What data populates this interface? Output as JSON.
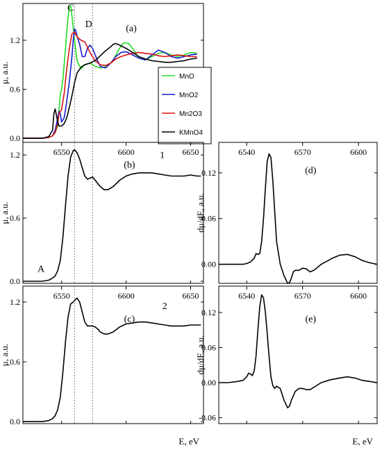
{
  "colors": {
    "mno": "#22dd22",
    "mno2": "#1a1acc",
    "mn2o3": "#dd1111",
    "kmno4": "#000000",
    "axis": "#000000",
    "marker_line": "#555555"
  },
  "chart_data": [
    {
      "id": "a",
      "type": "line",
      "panel_label": "(a)",
      "ylabel": "μ, a.u.",
      "xlabel": "",
      "xlim": [
        6520,
        6660
      ],
      "ylim": [
        -0.05,
        1.65
      ],
      "yticks": [
        0.0,
        0.6,
        1.2
      ],
      "ytick_labels": [
        "0.0",
        "0.6",
        "1.2"
      ],
      "legend": {
        "placement": "lower-right",
        "entries": [
          "MnO",
          "MnO2",
          "Mn2O3",
          "KMnO4"
        ]
      },
      "annotations": [
        {
          "text": "C",
          "x": 6557,
          "y": 1.56
        },
        {
          "text": "D",
          "x": 6571,
          "y": 1.36
        }
      ],
      "vlines": [
        6560,
        6574
      ],
      "series": [
        {
          "name": "MnO",
          "color_key": "mno",
          "x": [
            6520,
            6535,
            6540,
            6543,
            6545,
            6547,
            6548,
            6549,
            6550,
            6551,
            6552,
            6553,
            6554,
            6555,
            6556,
            6557,
            6558,
            6560,
            6562,
            6565,
            6568,
            6572,
            6576,
            6580,
            6585,
            6590,
            6594,
            6598,
            6602,
            6606,
            6610,
            6615,
            6620,
            6625,
            6630,
            6635,
            6640,
            6645,
            6650,
            6655
          ],
          "y": [
            0.0,
            0.0,
            0.01,
            0.03,
            0.07,
            0.15,
            0.35,
            0.55,
            0.6,
            0.72,
            0.9,
            1.1,
            1.3,
            1.48,
            1.6,
            1.62,
            1.5,
            1.2,
            0.95,
            0.85,
            0.9,
            0.92,
            0.88,
            0.86,
            0.88,
            0.95,
            1.08,
            1.17,
            1.16,
            1.08,
            0.98,
            0.96,
            1.0,
            1.04,
            1.05,
            1.02,
            1.0,
            1.02,
            1.05,
            1.04
          ]
        },
        {
          "name": "MnO2",
          "color_key": "mno2",
          "x": [
            6520,
            6535,
            6540,
            6543,
            6545,
            6547,
            6548,
            6549,
            6550,
            6552,
            6554,
            6556,
            6558,
            6559,
            6560,
            6561,
            6562,
            6564,
            6566,
            6568,
            6570,
            6572,
            6574,
            6577,
            6580,
            6584,
            6588,
            6592,
            6596,
            6600,
            6605,
            6610,
            6615,
            6620,
            6625,
            6630,
            6635,
            6640,
            6645,
            6650,
            6655
          ],
          "y": [
            0.0,
            0.0,
            0.01,
            0.03,
            0.1,
            0.25,
            0.33,
            0.3,
            0.2,
            0.25,
            0.45,
            0.7,
            1.0,
            1.2,
            1.34,
            1.32,
            1.25,
            1.15,
            1.0,
            1.0,
            1.1,
            1.14,
            1.1,
            0.98,
            0.88,
            0.86,
            0.92,
            1.0,
            1.05,
            1.06,
            1.02,
            0.98,
            0.96,
            1.02,
            1.08,
            1.05,
            1.0,
            0.98,
            1.0,
            1.02,
            1.03
          ]
        },
        {
          "name": "Mn2O3",
          "color_key": "mn2o3",
          "x": [
            6520,
            6535,
            6540,
            6543,
            6545,
            6547,
            6548,
            6549,
            6550,
            6552,
            6554,
            6556,
            6558,
            6560,
            6562,
            6565,
            6568,
            6572,
            6576,
            6580,
            6584,
            6588,
            6592,
            6596,
            6600,
            6605,
            6610,
            6615,
            6620,
            6625,
            6630,
            6635,
            6640,
            6645,
            6650,
            6655
          ],
          "y": [
            0.0,
            0.0,
            0.01,
            0.03,
            0.07,
            0.18,
            0.3,
            0.33,
            0.35,
            0.55,
            0.85,
            1.1,
            1.28,
            1.3,
            1.24,
            1.2,
            1.18,
            1.05,
            0.95,
            0.9,
            0.89,
            0.92,
            0.97,
            1.0,
            1.02,
            1.04,
            1.05,
            1.04,
            1.03,
            1.01,
            1.0,
            1.01,
            1.02,
            1.01,
            1.0,
            1.0
          ]
        },
        {
          "name": "KMnO4",
          "color_key": "kmno4",
          "x": [
            6520,
            6535,
            6540,
            6543,
            6544,
            6545,
            6546,
            6547,
            6548,
            6550,
            6552,
            6554,
            6556,
            6558,
            6560,
            6562,
            6565,
            6568,
            6572,
            6576,
            6580,
            6584,
            6588,
            6590,
            6592,
            6595,
            6600,
            6605,
            6610,
            6615,
            6620,
            6625,
            6630,
            6635,
            6640,
            6645,
            6650,
            6655
          ],
          "y": [
            0.0,
            0.0,
            0.02,
            0.1,
            0.3,
            0.36,
            0.28,
            0.2,
            0.15,
            0.15,
            0.18,
            0.25,
            0.38,
            0.52,
            0.68,
            0.8,
            0.87,
            0.9,
            0.92,
            0.95,
            1.01,
            1.07,
            1.12,
            1.15,
            1.16,
            1.14,
            1.1,
            1.05,
            1.0,
            0.97,
            0.95,
            0.94,
            0.93,
            0.93,
            0.94,
            0.95,
            0.97,
            0.98
          ]
        }
      ]
    },
    {
      "id": "b",
      "type": "line",
      "panel_label": "(b)",
      "ylabel": "μ, a.u.",
      "xlabel": "",
      "xlim": [
        6520,
        6660
      ],
      "ylim": [
        -0.02,
        1.32
      ],
      "xticks": [
        6550,
        6600,
        6650
      ],
      "xtick_labels": [
        "6550",
        "6600",
        "6650"
      ],
      "yticks": [
        0.0,
        0.6,
        1.2
      ],
      "ytick_labels": [
        "0.0",
        "0.6",
        "1.2"
      ],
      "annotations": [
        {
          "text": "1",
          "x": 6628,
          "y": 1.17
        },
        {
          "text": "A",
          "x": 6534,
          "y": 0.09
        }
      ],
      "vlines": [
        6560,
        6574
      ],
      "series": [
        {
          "color_key": "kmno4",
          "x": [
            6520,
            6530,
            6535,
            6540,
            6543,
            6545,
            6547,
            6549,
            6551,
            6553,
            6555,
            6557,
            6559,
            6560,
            6562,
            6564,
            6566,
            6568,
            6570,
            6572,
            6574,
            6576,
            6578,
            6580,
            6583,
            6586,
            6590,
            6595,
            6600,
            6605,
            6610,
            6615,
            6620,
            6625,
            6630,
            6635,
            6640,
            6645,
            6650,
            6655,
            6658
          ],
          "y": [
            0.0,
            0.0,
            0.0,
            0.01,
            0.03,
            0.05,
            0.1,
            0.2,
            0.42,
            0.72,
            1.0,
            1.18,
            1.24,
            1.25,
            1.22,
            1.16,
            1.08,
            1.0,
            0.97,
            0.98,
            0.99,
            0.96,
            0.93,
            0.9,
            0.87,
            0.87,
            0.9,
            0.96,
            1.0,
            1.02,
            1.03,
            1.03,
            1.03,
            1.02,
            1.01,
            1.0,
            1.0,
            1.0,
            1.01,
            1.0,
            1.0
          ]
        }
      ]
    },
    {
      "id": "c",
      "type": "line",
      "panel_label": "(c)",
      "ylabel": "μ, a.u.",
      "xlabel": "E, eV",
      "xlim": [
        6520,
        6660
      ],
      "ylim": [
        -0.02,
        1.36
      ],
      "xticks": [
        6550,
        6600,
        6650
      ],
      "xtick_labels": [
        "6550",
        "6600",
        "6650"
      ],
      "yticks": [
        0.0,
        0.6,
        1.2
      ],
      "ytick_labels": [
        "0.0",
        "0.6",
        "1.2"
      ],
      "annotations": [
        {
          "text": "2",
          "x": 6630,
          "y": 1.13
        }
      ],
      "vlines": [
        6560,
        6574
      ],
      "series": [
        {
          "color_key": "kmno4",
          "x": [
            6520,
            6530,
            6535,
            6540,
            6543,
            6545,
            6547,
            6549,
            6551,
            6553,
            6555,
            6557,
            6559,
            6561,
            6562,
            6564,
            6566,
            6568,
            6570,
            6572,
            6574,
            6576,
            6578,
            6580,
            6583,
            6586,
            6590,
            6595,
            6600,
            6605,
            6610,
            6615,
            6620,
            6625,
            6630,
            6635,
            6640,
            6645,
            6650,
            6655,
            6658
          ],
          "y": [
            0.0,
            0.0,
            0.0,
            0.01,
            0.03,
            0.06,
            0.12,
            0.25,
            0.5,
            0.8,
            1.05,
            1.18,
            1.2,
            1.23,
            1.24,
            1.2,
            1.1,
            1.0,
            0.96,
            0.96,
            0.96,
            0.95,
            0.93,
            0.9,
            0.88,
            0.88,
            0.9,
            0.95,
            0.98,
            0.99,
            1.0,
            1.0,
            0.99,
            0.98,
            0.97,
            0.96,
            0.96,
            0.96,
            0.97,
            0.97,
            0.97
          ]
        }
      ]
    },
    {
      "id": "d",
      "type": "line",
      "panel_label": "(d)",
      "ylabel": "dμ/dE, a.u.",
      "xlabel": "",
      "xlim": [
        6525,
        6610
      ],
      "ylim": [
        -0.025,
        0.16
      ],
      "xticks": [
        6540,
        6570,
        6600
      ],
      "xtick_labels": [
        "6540",
        "6570",
        "6600"
      ],
      "yticks": [
        0.0,
        0.06,
        0.12
      ],
      "ytick_labels": [
        "0.00",
        "0.06",
        "0.12"
      ],
      "series": [
        {
          "color_key": "kmno4",
          "x": [
            6525,
            6530,
            6535,
            6538,
            6540,
            6542,
            6544,
            6545,
            6546,
            6547,
            6548,
            6549,
            6550,
            6551,
            6552,
            6553,
            6554,
            6555,
            6556,
            6558,
            6560,
            6562,
            6563,
            6564,
            6565,
            6566,
            6568,
            6570,
            6572,
            6574,
            6576,
            6578,
            6580,
            6583,
            6586,
            6590,
            6594,
            6598,
            6602,
            6606,
            6610
          ],
          "y": [
            0.0,
            0.0,
            0.0,
            0.0,
            0.001,
            0.003,
            0.008,
            0.014,
            0.013,
            0.014,
            0.03,
            0.06,
            0.1,
            0.135,
            0.145,
            0.14,
            0.11,
            0.07,
            0.03,
            0.0,
            -0.015,
            -0.025,
            -0.024,
            -0.018,
            -0.01,
            -0.008,
            -0.008,
            -0.005,
            -0.006,
            -0.01,
            -0.008,
            -0.004,
            0.0,
            0.004,
            0.008,
            0.012,
            0.013,
            0.01,
            0.005,
            0.002,
            0.0
          ]
        }
      ]
    },
    {
      "id": "e",
      "type": "line",
      "panel_label": "(e)",
      "ylabel": "dμ/dE, a.u.",
      "xlabel": "E, eV",
      "xlim": [
        6525,
        6610
      ],
      "ylim": [
        -0.07,
        0.165
      ],
      "xticks": [
        6540,
        6570,
        6600
      ],
      "xtick_labels": [
        "6540",
        "6570",
        "6600"
      ],
      "yticks": [
        -0.06,
        0.0,
        0.06,
        0.12
      ],
      "ytick_labels": [
        "-0.06",
        "0.00",
        "0.06",
        "0.12"
      ],
      "series": [
        {
          "color_key": "kmno4",
          "x": [
            6525,
            6530,
            6535,
            6538,
            6540,
            6541,
            6542,
            6543,
            6544,
            6545,
            6546,
            6547,
            6548,
            6549,
            6550,
            6551,
            6552,
            6553,
            6554,
            6555,
            6556,
            6558,
            6560,
            6562,
            6563,
            6564,
            6566,
            6568,
            6570,
            6572,
            6574,
            6576,
            6580,
            6585,
            6590,
            6594,
            6598,
            6602,
            6606,
            6610
          ],
          "y": [
            0.0,
            0.0,
            0.002,
            0.004,
            0.01,
            0.016,
            0.015,
            0.012,
            0.02,
            0.045,
            0.09,
            0.13,
            0.15,
            0.145,
            0.12,
            0.085,
            0.045,
            0.01,
            -0.005,
            -0.01,
            -0.006,
            -0.01,
            -0.03,
            -0.043,
            -0.04,
            -0.03,
            -0.015,
            -0.01,
            -0.01,
            -0.012,
            -0.012,
            -0.008,
            0.0,
            0.005,
            0.008,
            0.01,
            0.008,
            0.004,
            0.002,
            0.0
          ]
        }
      ]
    }
  ]
}
